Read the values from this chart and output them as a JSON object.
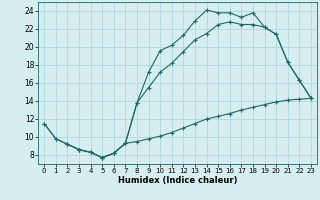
{
  "xlabel": "Humidex (Indice chaleur)",
  "background_color": "#d6eef0",
  "grid_color": "#a8d4d8",
  "line_color": "#1a6b64",
  "xlim": [
    -0.5,
    23.5
  ],
  "ylim": [
    7.0,
    25.0
  ],
  "xticks": [
    0,
    1,
    2,
    3,
    4,
    5,
    6,
    7,
    8,
    9,
    10,
    11,
    12,
    13,
    14,
    15,
    16,
    17,
    18,
    19,
    20,
    21,
    22,
    23
  ],
  "yticks": [
    8,
    10,
    12,
    14,
    16,
    18,
    20,
    22,
    24
  ],
  "line1_x": [
    0,
    1,
    2,
    3,
    4,
    5,
    6,
    7,
    8,
    9,
    10,
    11,
    12,
    13,
    14,
    15,
    16,
    17,
    18,
    19,
    20,
    21,
    22,
    23
  ],
  "line1_y": [
    11.5,
    9.8,
    9.2,
    8.6,
    8.3,
    7.7,
    8.2,
    9.3,
    13.8,
    17.2,
    19.6,
    20.2,
    21.3,
    22.9,
    24.1,
    23.8,
    23.8,
    23.3,
    23.8,
    22.2,
    21.4,
    18.3,
    16.3,
    14.3
  ],
  "line2_x": [
    0,
    1,
    2,
    3,
    4,
    5,
    6,
    7,
    8,
    9,
    10,
    11,
    12,
    13,
    14,
    15,
    16,
    17,
    18,
    19,
    20,
    21,
    22,
    23
  ],
  "line2_y": [
    11.5,
    9.8,
    9.2,
    8.6,
    8.3,
    7.7,
    8.2,
    9.3,
    9.5,
    9.8,
    10.1,
    10.5,
    11.0,
    11.5,
    12.0,
    12.3,
    12.6,
    13.0,
    13.3,
    13.6,
    13.9,
    14.1,
    14.2,
    14.3
  ],
  "line3_x": [
    2,
    3,
    4,
    5,
    6,
    7,
    8,
    9,
    10,
    11,
    12,
    13,
    14,
    15,
    16,
    17,
    18,
    19,
    20,
    21,
    22,
    23
  ],
  "line3_y": [
    9.2,
    8.6,
    8.3,
    7.7,
    8.2,
    9.3,
    13.8,
    15.5,
    17.2,
    18.2,
    19.5,
    20.8,
    21.5,
    22.5,
    22.8,
    22.5,
    22.5,
    22.2,
    21.4,
    18.3,
    16.3,
    14.3
  ]
}
